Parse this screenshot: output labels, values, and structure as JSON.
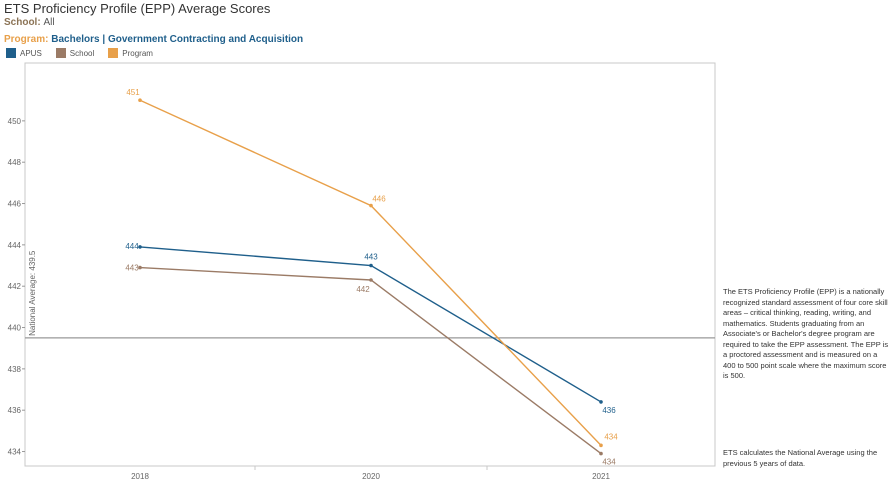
{
  "header": {
    "title": "ETS Proficiency Profile (EPP) Average Scores",
    "school_label": "School:",
    "school_value": "All",
    "program_label": "Program:",
    "program_value": "Bachelors | Government Contracting and Acquisition"
  },
  "side_text": {
    "description": "The ETS Proficiency Profile (EPP) is a nationally recognized standard assessment of four core skill areas – critical thinking, reading, writing, and mathematics. Students graduating from an Associate's or Bachelor's degree program are required to take the EPP assessment.  The EPP is a proctored assessment and is measured on a 400 to 500 point scale where the maximum score is 500.",
    "note": "ETS calculates the National Average using the previous 5 years of data."
  },
  "chart_data": {
    "type": "line",
    "title": "ETS Proficiency Profile (EPP) Average Scores",
    "categories": [
      "2018",
      "2020",
      "2021"
    ],
    "ylim": [
      433.3,
      452.8
    ],
    "yticks": [
      434,
      436,
      438,
      440,
      442,
      444,
      446,
      448,
      450
    ],
    "legend_position": "top-left",
    "grid": false,
    "series": [
      {
        "name": "APUS",
        "color": "#1f5f8b",
        "values": [
          443.9,
          443.0,
          436.4
        ],
        "labels": [
          "444",
          "443",
          "436"
        ]
      },
      {
        "name": "School",
        "color": "#9b7b66",
        "values": [
          442.9,
          442.3,
          433.9
        ],
        "labels": [
          "443",
          "442",
          "434"
        ]
      },
      {
        "name": "Program",
        "color": "#e8a04a",
        "values": [
          451.0,
          445.9,
          434.3
        ],
        "labels": [
          "451",
          "446",
          "434"
        ]
      }
    ],
    "reference_line": {
      "value": 439.5,
      "label": "National Average: 439.5",
      "color": "#999999"
    }
  }
}
